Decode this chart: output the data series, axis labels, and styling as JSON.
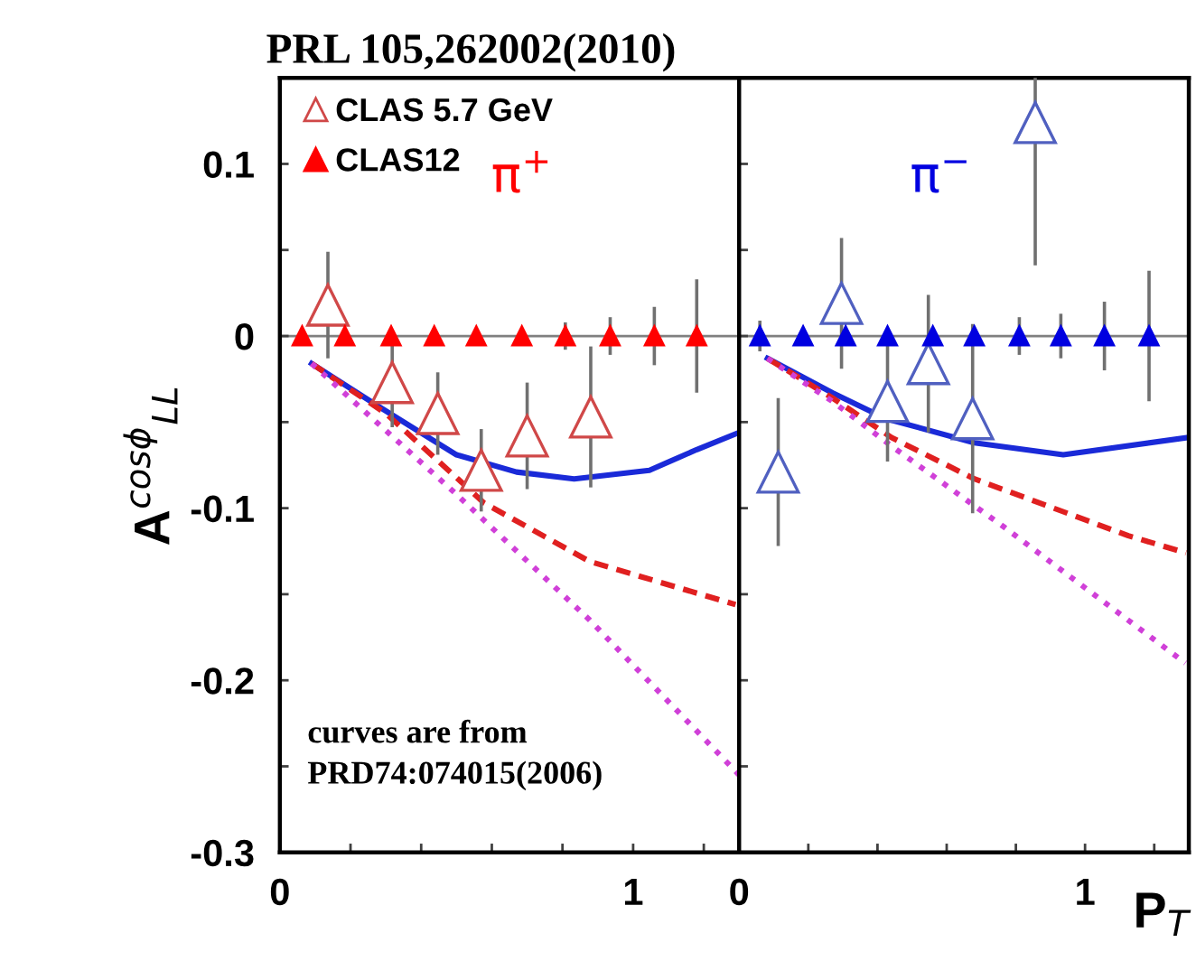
{
  "chart_data": [
    {
      "type": "scatter",
      "title": "PRL 105,262002(2010)",
      "ylabel": "A$^{cosϕ}$$_{LL}$",
      "legend": "top left",
      "tick_labels": true,
      "xlim": [
        0,
        1.3
      ],
      "xticks": [
        0,
        {
          "value": 0.2,
          "label": null
        },
        {
          "value": 0.4,
          "label": null
        },
        {
          "value": 0.6,
          "label": null
        },
        {
          "value": 0.8,
          "label": null
        },
        1,
        {
          "value": 1.2,
          "label": null
        }
      ],
      "ylim": [
        -0.3,
        0.15
      ],
      "yticks": [
        -0.3,
        {
          "value": -0.25,
          "label": null
        },
        -0.2,
        {
          "value": -0.15,
          "label": null
        },
        -0.1,
        {
          "value": -0.05,
          "label": null
        },
        0,
        {
          "value": 0.05,
          "label": null
        },
        0.1
      ],
      "ref_lines": [
        {
          "axis": "y",
          "value": 0,
          "color": "#808080"
        }
      ],
      "annotations": [
        "π$^{+}$",
        "curves are from\nPRD74:074015(2006)"
      ],
      "series": [
        {
          "name": "CLAS 5.7 GeV",
          "marker": "triangle",
          "color": "#d04848",
          "x": [
            0.136,
            0.318,
            0.447,
            0.57,
            0.7,
            0.88
          ],
          "values": [
            0.018,
            -0.027,
            -0.045,
            -0.078,
            -0.058,
            -0.047
          ],
          "errors": [
            0.03,
            0.025,
            0.023,
            0.023,
            0.03,
            0.04
          ]
        },
        {
          "name": "CLAS12",
          "marker": "triangle",
          "color": "#ff0000",
          "x": [
            0.063,
            0.184,
            0.315,
            0.437,
            0.556,
            0.685,
            0.808,
            0.935,
            1.06,
            1.18
          ],
          "values": [
            0,
            0,
            0,
            0,
            0,
            0,
            0,
            0,
            0,
            0
          ],
          "errors": [
            null,
            null,
            null,
            null,
            null,
            null,
            0.007,
            0.01,
            0.016,
            0.032
          ]
        },
        {
          "type": "line",
          "line_style": "solid",
          "marker": "none",
          "color": "#1a2ad8",
          "x": [
            0.09,
            0.28,
            0.5,
            0.67,
            0.833,
            1.046,
            1.18,
            1.3
          ],
          "values": [
            -0.016,
            -0.041,
            -0.069,
            -0.079,
            -0.083,
            -0.078,
            -0.066,
            -0.056
          ]
        },
        {
          "type": "line",
          "line_style": "dashed",
          "marker": "none",
          "color": "#e02020",
          "x": [
            0.09,
            0.3,
            0.52,
            0.578,
            0.877,
            1.29
          ],
          "values": [
            -0.016,
            -0.045,
            -0.086,
            -0.097,
            -0.131,
            -0.156
          ]
        },
        {
          "type": "line",
          "line_style": "dotted",
          "marker": "none",
          "color": "#d040d8",
          "x": [
            0.09,
            0.5,
            0.877,
            1.3
          ],
          "values": [
            -0.016,
            -0.092,
            -0.165,
            -0.255
          ]
        }
      ]
    },
    {
      "type": "scatter",
      "xlabel": "P$_{T}$",
      "tick_labels": "x",
      "legend": false,
      "xlim": [
        0,
        1.3
      ],
      "xticks": [
        0,
        {
          "value": 0.2,
          "label": null
        },
        {
          "value": 0.4,
          "label": null
        },
        {
          "value": 0.6,
          "label": null
        },
        {
          "value": 0.8,
          "label": null
        },
        1,
        {
          "value": 1.2,
          "label": null
        }
      ],
      "ylim": [
        -0.3,
        0.15
      ],
      "yticks": [
        -0.3,
        {
          "value": -0.25,
          "label": null
        },
        -0.2,
        {
          "value": -0.15,
          "label": null
        },
        -0.1,
        {
          "value": -0.05,
          "label": null
        },
        0,
        {
          "value": 0.05,
          "label": null
        },
        0.1
      ],
      "ref_lines": [
        {
          "axis": "y",
          "value": 0,
          "color": "#808080"
        }
      ],
      "annotations": [
        "π$^{−}$"
      ],
      "series": [
        {
          "marker": "triangle",
          "color": "#5060c0",
          "x": [
            0.113,
            0.296,
            0.429,
            0.547,
            0.675,
            0.856
          ],
          "values": [
            -0.079,
            0.019,
            -0.038,
            -0.016,
            -0.048,
            0.124
          ],
          "errors": [
            0.042,
            0.037,
            0.034,
            0.039,
            0.054,
            [
              0.042,
              0.15
            ]
          ]
        },
        {
          "marker": "triangle",
          "color": "#0000e0",
          "x": [
            0.06,
            0.185,
            0.308,
            0.429,
            0.56,
            0.68,
            0.81,
            0.93,
            1.056,
            1.185
          ],
          "values": [
            0,
            0,
            0,
            0,
            0,
            0,
            0,
            0,
            0,
            0
          ],
          "errors": [
            0.008,
            null,
            null,
            null,
            null,
            null,
            0.01,
            0.012,
            0.019,
            0.037
          ]
        },
        {
          "type": "line",
          "line_style": "solid",
          "marker": "none",
          "color": "#1a2ad8",
          "x": [
            0.082,
            0.27,
            0.424,
            0.68,
            0.937,
            1.296
          ],
          "values": [
            -0.013,
            -0.033,
            -0.048,
            -0.062,
            -0.069,
            -0.059
          ]
        },
        {
          "type": "line",
          "line_style": "dashed",
          "marker": "none",
          "color": "#e02020",
          "x": [
            0.082,
            0.27,
            0.441,
            0.68,
            1.125,
            1.292
          ],
          "values": [
            -0.013,
            -0.036,
            -0.059,
            -0.083,
            -0.116,
            -0.126
          ]
        },
        {
          "type": "line",
          "line_style": "dotted",
          "marker": "none",
          "color": "#d040d8",
          "x": [
            0.082,
            0.27,
            0.441,
            0.766,
            1.29
          ],
          "values": [
            -0.013,
            -0.038,
            -0.064,
            -0.111,
            -0.19
          ]
        }
      ]
    }
  ]
}
